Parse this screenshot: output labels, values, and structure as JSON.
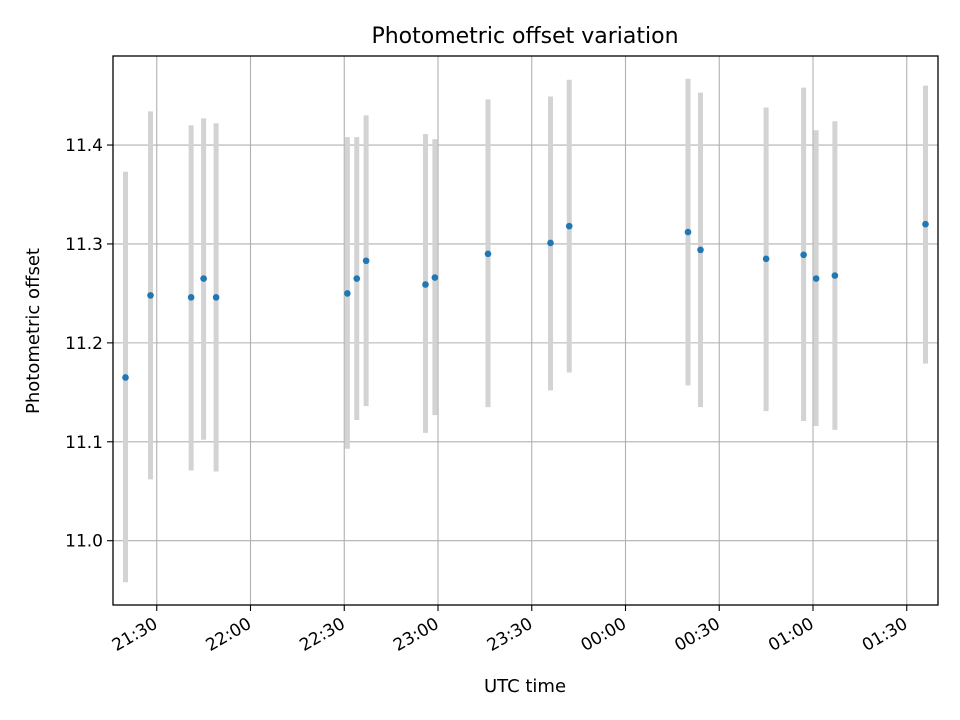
{
  "chart_data": {
    "type": "scatter",
    "title": "Photometric offset variation",
    "xlabel": "UTC time",
    "ylabel": "Photometric offset",
    "xlim": [
      "21:16",
      "01:40"
    ],
    "ylim": [
      10.935,
      11.49
    ],
    "grid": true,
    "x_ticks": [
      "21:30",
      "22:00",
      "22:30",
      "23:00",
      "23:30",
      "00:00",
      "00:30",
      "01:00",
      "01:30"
    ],
    "y_ticks": [
      "11.0",
      "11.1",
      "11.2",
      "11.3",
      "11.4"
    ],
    "point_color": "#1f77b4",
    "errorbar_color": "#d3d3d3",
    "points": [
      {
        "t": "21:20",
        "y": 11.165,
        "lo": 10.958,
        "hi": 11.373
      },
      {
        "t": "21:28",
        "y": 11.248,
        "lo": 11.062,
        "hi": 11.434
      },
      {
        "t": "21:41",
        "y": 11.246,
        "lo": 11.071,
        "hi": 11.42
      },
      {
        "t": "21:45",
        "y": 11.265,
        "lo": 11.102,
        "hi": 11.427
      },
      {
        "t": "21:49",
        "y": 11.246,
        "lo": 11.07,
        "hi": 11.422
      },
      {
        "t": "22:31",
        "y": 11.25,
        "lo": 11.093,
        "hi": 11.408
      },
      {
        "t": "22:34",
        "y": 11.265,
        "lo": 11.122,
        "hi": 11.408
      },
      {
        "t": "22:37",
        "y": 11.283,
        "lo": 11.136,
        "hi": 11.43
      },
      {
        "t": "22:56",
        "y": 11.259,
        "lo": 11.109,
        "hi": 11.411
      },
      {
        "t": "22:59",
        "y": 11.266,
        "lo": 11.127,
        "hi": 11.406
      },
      {
        "t": "23:16",
        "y": 11.29,
        "lo": 11.135,
        "hi": 11.446
      },
      {
        "t": "23:36",
        "y": 11.301,
        "lo": 11.152,
        "hi": 11.449
      },
      {
        "t": "23:42",
        "y": 11.318,
        "lo": 11.17,
        "hi": 11.466
      },
      {
        "t": "00:20",
        "y": 11.312,
        "lo": 11.157,
        "hi": 11.467
      },
      {
        "t": "00:24",
        "y": 11.294,
        "lo": 11.135,
        "hi": 11.453
      },
      {
        "t": "00:45",
        "y": 11.285,
        "lo": 11.131,
        "hi": 11.438
      },
      {
        "t": "00:57",
        "y": 11.289,
        "lo": 11.121,
        "hi": 11.458
      },
      {
        "t": "01:01",
        "y": 11.265,
        "lo": 11.116,
        "hi": 11.415
      },
      {
        "t": "01:07",
        "y": 11.268,
        "lo": 11.112,
        "hi": 11.424
      },
      {
        "t": "01:36",
        "y": 11.32,
        "lo": 11.179,
        "hi": 11.46
      }
    ]
  }
}
